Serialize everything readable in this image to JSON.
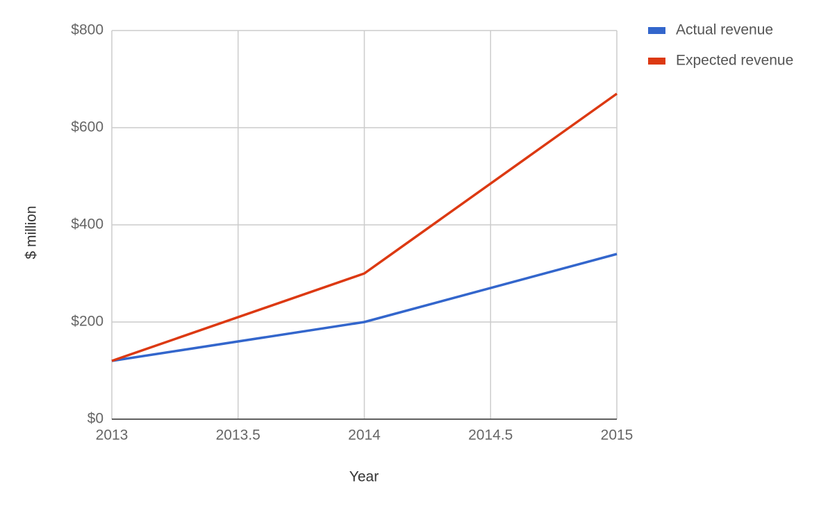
{
  "chart_data": {
    "type": "line",
    "x": [
      2013,
      2014,
      2015
    ],
    "series": [
      {
        "name": "Actual revenue",
        "color": "#3366cc",
        "values": [
          120,
          200,
          340
        ]
      },
      {
        "name": "Expected revenue",
        "color": "#dc3912",
        "values": [
          120,
          300,
          670
        ]
      }
    ],
    "xlabel": "Year",
    "ylabel": "$ million",
    "xlim": [
      2013,
      2015
    ],
    "xticks": [
      2013,
      2013.5,
      2014,
      2014.5,
      2015
    ],
    "ylim": [
      0,
      800
    ],
    "yticks": [
      {
        "value": 0,
        "label": "$0"
      },
      {
        "value": 200,
        "label": "$200"
      },
      {
        "value": 400,
        "label": "$400"
      },
      {
        "value": 600,
        "label": "$600"
      },
      {
        "value": 800,
        "label": "$800"
      }
    ],
    "grid": true,
    "legend": "top-right"
  }
}
